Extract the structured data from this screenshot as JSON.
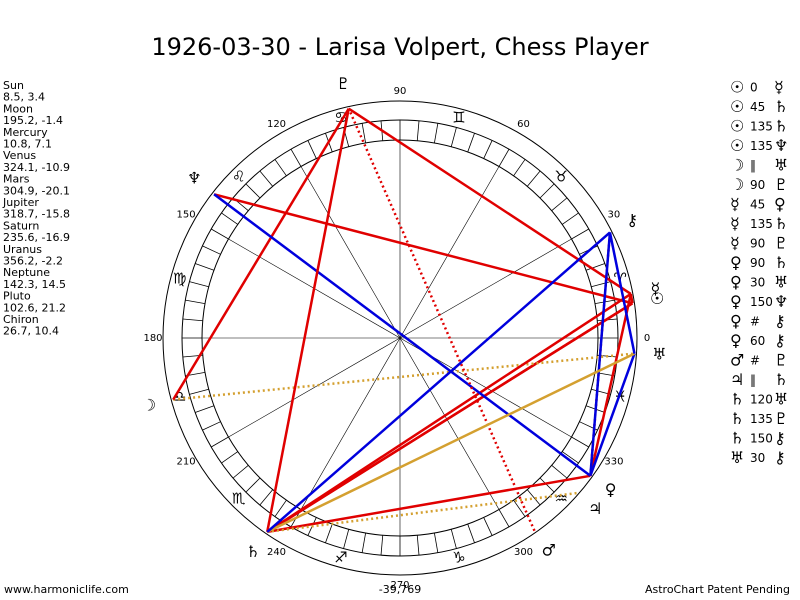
{
  "title": "1926-03-30 - Larisa Volpert, Chess Player",
  "planets": [
    {
      "name": "Sun",
      "glyph": "☉",
      "position": "8.5, 3.4"
    },
    {
      "name": "Moon",
      "glyph": "☽",
      "position": "195.2, -1.4"
    },
    {
      "name": "Mercury",
      "glyph": "☿",
      "position": "10.8, 7.1"
    },
    {
      "name": "Venus",
      "glyph": "♀",
      "position": "324.1, -10.9"
    },
    {
      "name": "Mars",
      "glyph": "♂",
      "position": "304.9, -20.1"
    },
    {
      "name": "Jupiter",
      "glyph": "♃",
      "position": "318.7, -15.8"
    },
    {
      "name": "Saturn",
      "glyph": "♄",
      "position": "235.6, -16.9"
    },
    {
      "name": "Uranus",
      "glyph": "♅",
      "position": "356.2, -2.2"
    },
    {
      "name": "Neptune",
      "glyph": "♆",
      "position": "142.3, 14.5"
    },
    {
      "name": "Pluto",
      "glyph": "♇",
      "position": "102.6, 21.2"
    },
    {
      "name": "Chiron",
      "glyph": "⚷",
      "position": "26.7, 10.4"
    }
  ],
  "signs": [
    "♈",
    "♉",
    "♊",
    "♋",
    "♌",
    "♍",
    "♎",
    "♏",
    "♐",
    "♑",
    "♒",
    "♓"
  ],
  "degree_labels": [
    0,
    30,
    60,
    90,
    120,
    150,
    180,
    210,
    240,
    270,
    300,
    330
  ],
  "aspects": [
    {
      "p1": "☉",
      "aspect": "0",
      "p2": "☿",
      "color": "#e00000",
      "line": "solid"
    },
    {
      "p1": "☉",
      "aspect": "45",
      "p2": "♄",
      "color": "#e00000",
      "line": "solid"
    },
    {
      "p1": "☉",
      "aspect": "135",
      "p2": "♄",
      "color": "#e00000",
      "line": "solid"
    },
    {
      "p1": "☉",
      "aspect": "135",
      "p2": "♆",
      "color": "#e00000",
      "line": "solid"
    },
    {
      "p1": "☽",
      "aspect": "‖",
      "p2": "♅",
      "color": "#d4a030",
      "line": "dotted"
    },
    {
      "p1": "☽",
      "aspect": "90",
      "p2": "♇",
      "color": "#e00000",
      "line": "solid"
    },
    {
      "p1": "☿",
      "aspect": "45",
      "p2": "♀",
      "color": "#e00000",
      "line": "solid"
    },
    {
      "p1": "☿",
      "aspect": "135",
      "p2": "♄",
      "color": "#e00000",
      "line": "solid"
    },
    {
      "p1": "☿",
      "aspect": "90",
      "p2": "♇",
      "color": "#e00000",
      "line": "solid"
    },
    {
      "p1": "♀",
      "aspect": "90",
      "p2": "♄",
      "color": "#e00000",
      "line": "solid"
    },
    {
      "p1": "♀",
      "aspect": "30",
      "p2": "♅",
      "color": "#0000dd",
      "line": "solid"
    },
    {
      "p1": "♀",
      "aspect": "150",
      "p2": "♆",
      "color": "#0000dd",
      "line": "solid"
    },
    {
      "p1": "♀",
      "aspect": "#",
      "p2": "⚷",
      "color": "#e00000",
      "line": "dotted"
    },
    {
      "p1": "♀",
      "aspect": "60",
      "p2": "⚷",
      "color": "#0000dd",
      "line": "solid"
    },
    {
      "p1": "♂",
      "aspect": "#",
      "p2": "♇",
      "color": "#e00000",
      "line": "dotted"
    },
    {
      "p1": "♃",
      "aspect": "‖",
      "p2": "♄",
      "color": "#d4a030",
      "line": "dotted"
    },
    {
      "p1": "♄",
      "aspect": "120",
      "p2": "♅",
      "color": "#d4a030",
      "line": "solid"
    },
    {
      "p1": "♄",
      "aspect": "135",
      "p2": "♇",
      "color": "#e00000",
      "line": "solid"
    },
    {
      "p1": "♄",
      "aspect": "150",
      "p2": "⚷",
      "color": "#0000dd",
      "line": "solid"
    },
    {
      "p1": "♅",
      "aspect": "30",
      "p2": "⚷",
      "color": "#0000dd",
      "line": "solid"
    }
  ],
  "footer": {
    "left": "www.harmoniclife.com",
    "center": "-39,769",
    "right": "AstroChart Patent Pending"
  }
}
